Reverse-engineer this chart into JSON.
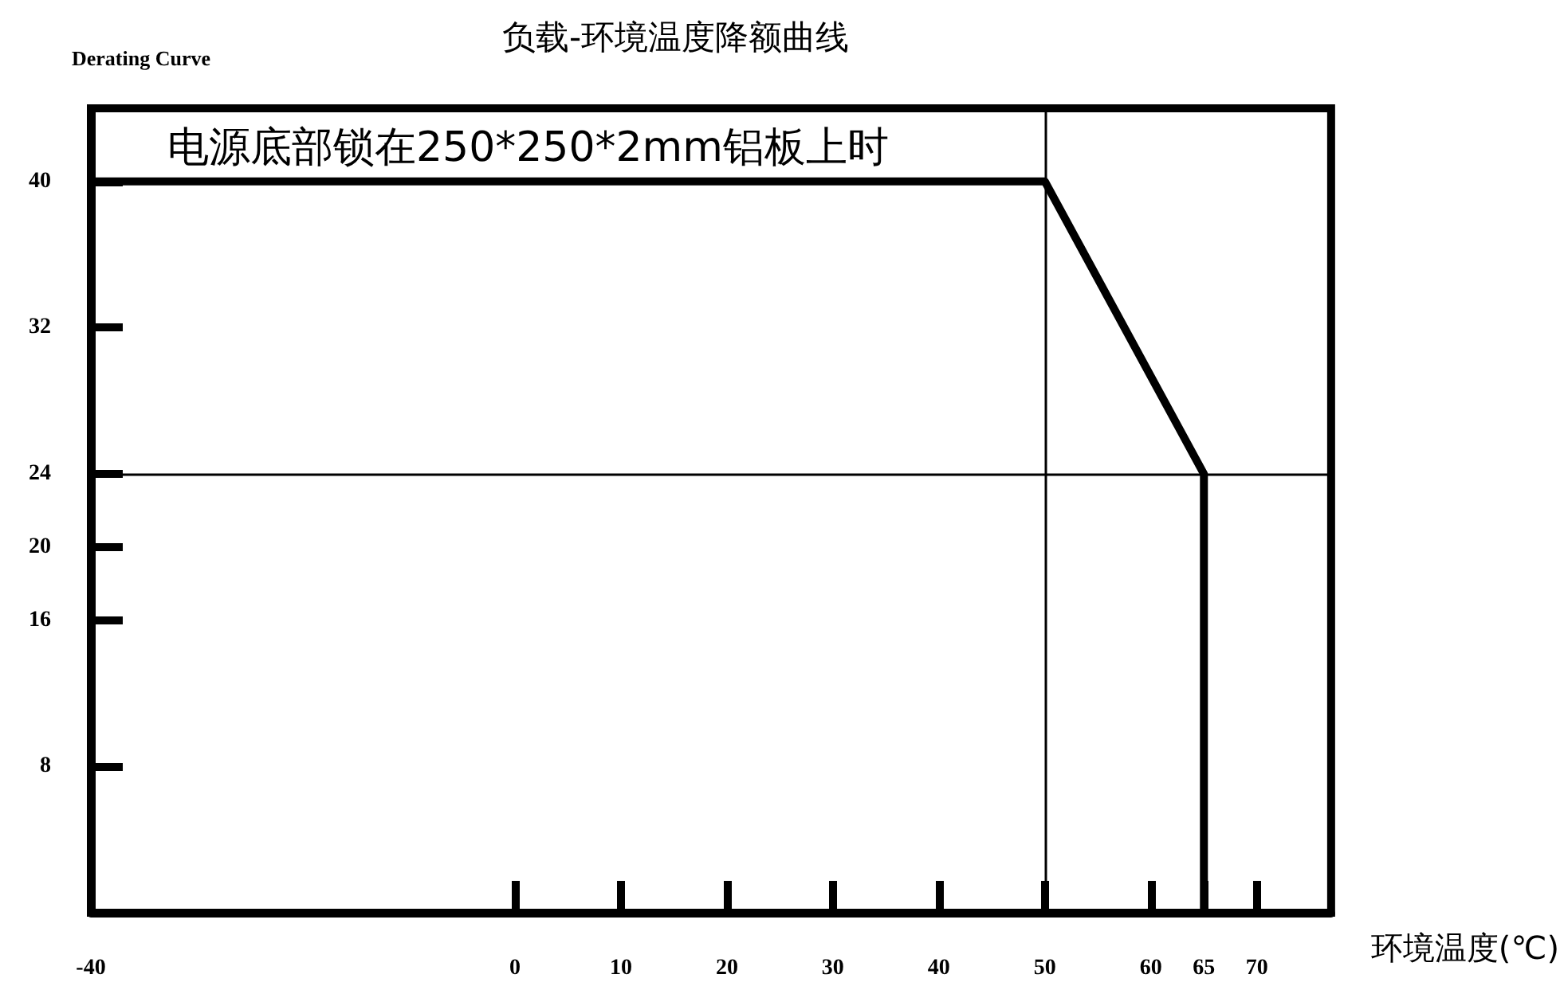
{
  "chart_data": {
    "type": "line",
    "title": "负载-环境温度降额曲线",
    "subtitle": "Derating Curve",
    "xlabel": "环境温度(℃)",
    "annotations": [
      "电源底部锁在250*250*2mm铝板上时"
    ],
    "x": [
      -40,
      50,
      65,
      65
    ],
    "series": [
      {
        "color": "#000000",
        "values": [
          40,
          40,
          24,
          0
        ]
      }
    ],
    "xlim": [
      -40,
      77
    ],
    "xticks": [
      -40,
      0,
      10,
      20,
      30,
      40,
      50,
      60,
      65,
      70
    ],
    "ylim": [
      0,
      44
    ],
    "yticks": [
      8,
      16,
      20,
      24,
      32,
      40
    ],
    "ref_lines": [
      {
        "axis": "x",
        "value": 50,
        "color": "#000000"
      },
      {
        "axis": "y",
        "value": 24,
        "color": "#000000"
      }
    ],
    "marker": "none",
    "line_style": "solid",
    "grid": false
  }
}
